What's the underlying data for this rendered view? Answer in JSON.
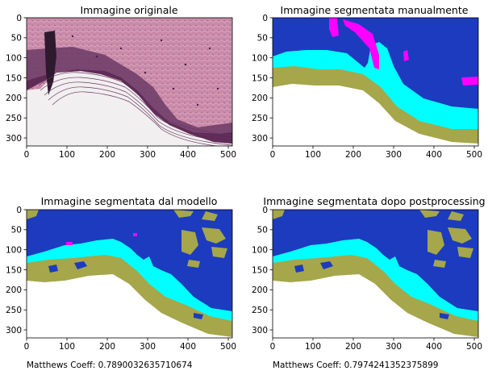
{
  "panels": [
    {
      "id": "original",
      "title": "Immagine originale",
      "xticks": [
        "0",
        "100",
        "200",
        "300",
        "400",
        "500"
      ],
      "yticks": [
        "0",
        "50",
        "100",
        "150",
        "200",
        "250",
        "300"
      ]
    },
    {
      "id": "manual",
      "title": "Immagine segmentata manualmente",
      "xticks": [
        "0",
        "100",
        "200",
        "300",
        "400",
        "500"
      ],
      "yticks": [
        "0",
        "50",
        "100",
        "150",
        "200",
        "250",
        "300"
      ]
    },
    {
      "id": "model",
      "title": "Immagine segmentata dal modello",
      "xticks": [
        "0",
        "100",
        "200",
        "300",
        "400",
        "500"
      ],
      "yticks": [
        "0",
        "50",
        "100",
        "150",
        "200",
        "250",
        "300"
      ],
      "footer": "Matthews Coeff: 0.7890032635710674"
    },
    {
      "id": "post",
      "title": "Immagine segmentata dopo postprocessing",
      "xticks": [
        "0",
        "100",
        "200",
        "300",
        "400",
        "500"
      ],
      "yticks": [
        "0",
        "50",
        "100",
        "150",
        "200",
        "250",
        "300"
      ],
      "footer": "Matthews Coeff: 0.7974241352375899"
    }
  ],
  "axis_ranges": {
    "x": [
      0,
      510
    ],
    "y": [
      320,
      0
    ]
  },
  "colors": {
    "background_class": "#1c3bbf",
    "cyan_class": "#00ffff",
    "olive_class": "#a6a64a",
    "magenta_class": "#ff00ff",
    "tissue_pink": "#c98aa8",
    "tissue_purple": "#5e2a56",
    "slide_white": "#f1efef"
  }
}
